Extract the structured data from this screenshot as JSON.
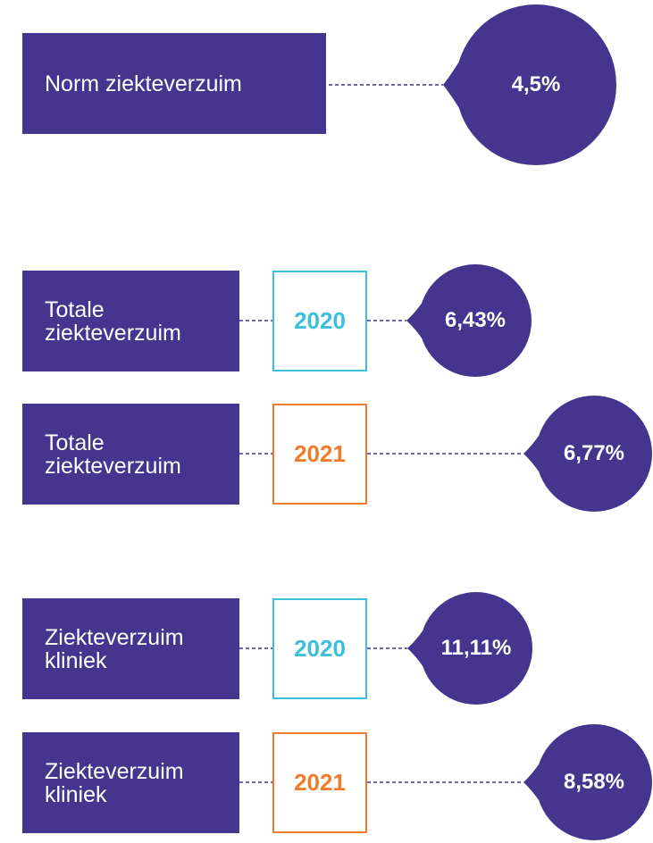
{
  "norm": {
    "label": "Norm ziekteverzuim",
    "value": "4,5%"
  },
  "rows": [
    {
      "label": "Totale ziekteverzuim",
      "year": "2020",
      "year_color": "#3bbfdc",
      "value": "6,43%"
    },
    {
      "label": "Totale ziekteverzuim",
      "year": "2021",
      "year_color": "#f07c2a",
      "value": "6,77%"
    },
    {
      "label": "Ziekteverzuim kliniek",
      "year": "2020",
      "year_color": "#3bbfdc",
      "value": "11,11%"
    },
    {
      "label": "Ziekteverzuim kliniek",
      "year": "2021",
      "year_color": "#f07c2a",
      "value": "8,58%"
    }
  ]
}
